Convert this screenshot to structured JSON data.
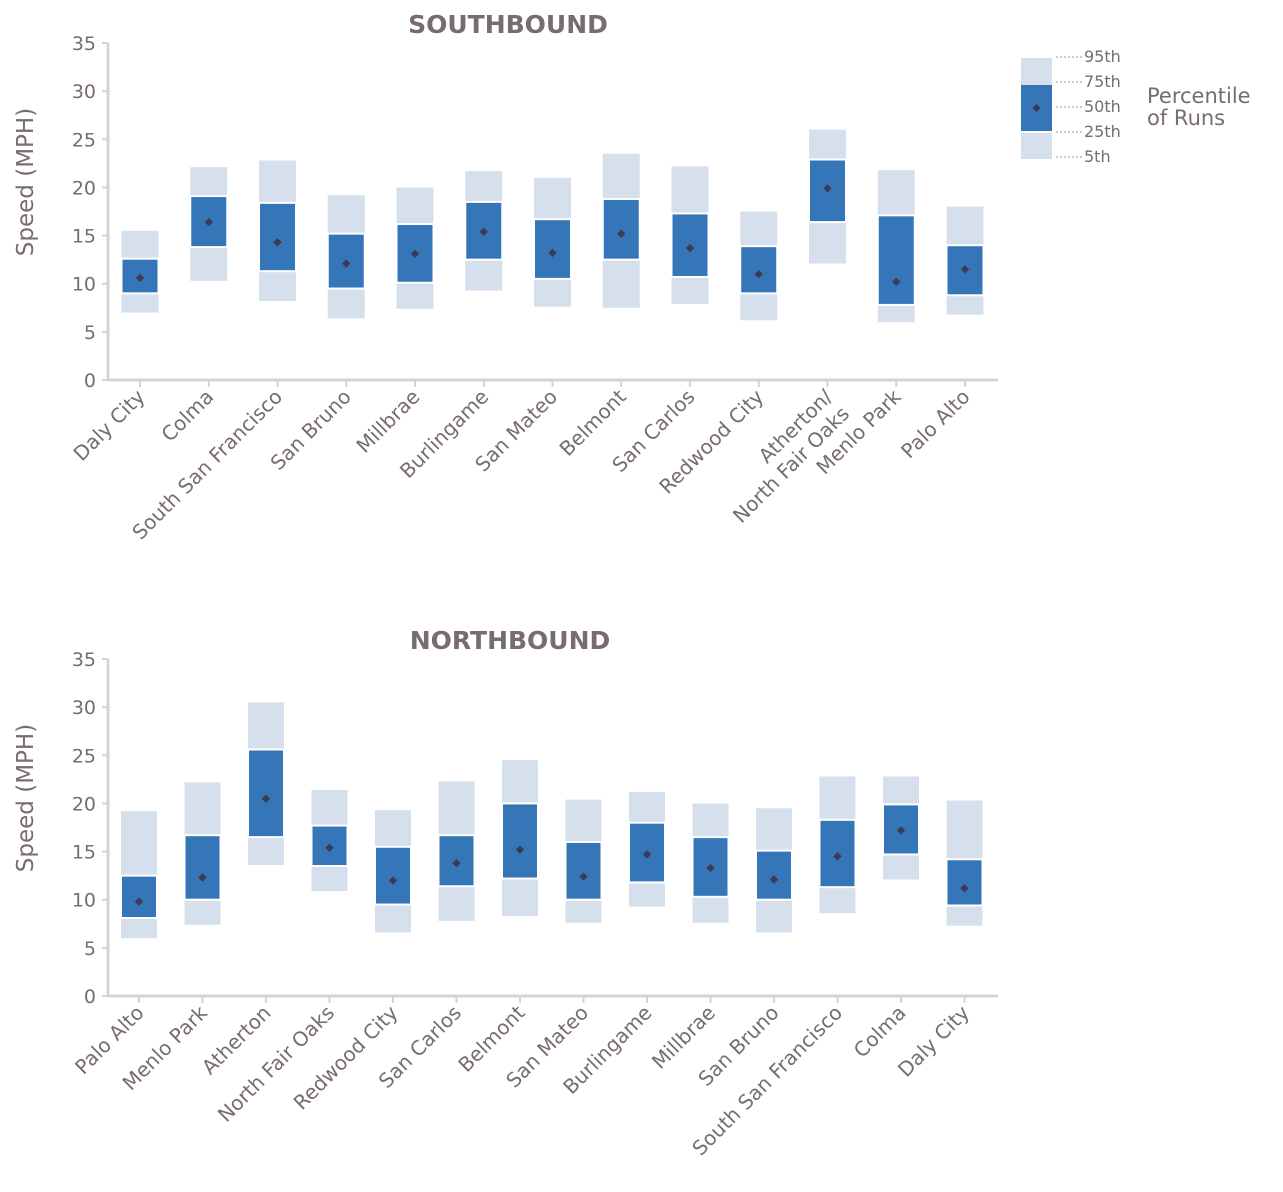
{
  "colors": {
    "outer_band": "#d6e0ec",
    "inner_band": "#3576b9",
    "median_marker": "#3c3a55",
    "text": "#776c6e",
    "axis": "#d4d4d6"
  },
  "legend": {
    "labels": [
      "95th",
      "75th",
      "50th",
      "25th",
      "5th"
    ],
    "title_lines": [
      "Percentile",
      "of Runs"
    ]
  },
  "chart_data": [
    {
      "type": "box",
      "title": "SOUTHBOUND",
      "ylabel": "Speed (MPH)",
      "xlabel": "",
      "ylim": [
        0,
        35
      ],
      "yticks": [
        0,
        5,
        10,
        15,
        20,
        25,
        30,
        35
      ],
      "grid": false,
      "legend_position": "right",
      "categories": [
        "Daly City",
        "Colma",
        "South San Francisco",
        "San Bruno",
        "Millbrae",
        "Burlingame",
        "San Mateo",
        "Belmont",
        "San Carlos",
        "Redwood City",
        [
          "Atherton/",
          "North Fair Oaks"
        ],
        "Menlo Park",
        "Palo Alto"
      ],
      "p5": [
        7.0,
        10.3,
        8.2,
        6.4,
        7.4,
        9.3,
        7.6,
        7.5,
        7.9,
        6.2,
        12.1,
        6.0,
        6.8
      ],
      "p25": [
        9.0,
        13.8,
        11.3,
        9.5,
        10.1,
        12.5,
        10.5,
        12.5,
        10.7,
        9.0,
        16.4,
        7.8,
        8.8
      ],
      "p50": [
        10.6,
        16.4,
        14.3,
        12.1,
        13.1,
        15.4,
        13.2,
        15.2,
        13.7,
        11.0,
        19.9,
        10.2,
        11.5
      ],
      "p75": [
        12.6,
        19.1,
        18.4,
        15.2,
        16.2,
        18.5,
        16.7,
        18.8,
        17.3,
        13.9,
        22.9,
        17.1,
        14.0
      ],
      "p95": [
        15.5,
        22.1,
        22.8,
        19.2,
        20.0,
        21.7,
        21.0,
        23.5,
        22.2,
        17.5,
        26.0,
        21.8,
        18.0
      ]
    },
    {
      "type": "box",
      "title": "NORTHBOUND",
      "ylabel": "Speed (MPH)",
      "xlabel": "",
      "ylim": [
        0,
        35
      ],
      "yticks": [
        0,
        5,
        10,
        15,
        20,
        25,
        30,
        35
      ],
      "grid": false,
      "categories": [
        "Palo Alto",
        "Menlo Park",
        "Atherton",
        "North Fair Oaks",
        "Redwood City",
        "San Carlos",
        "Belmont",
        "San Mateo",
        "Burlingame",
        "Millbrae",
        "San Bruno",
        "South San Francisco",
        "Colma",
        "Daly City"
      ],
      "p5": [
        6.0,
        7.4,
        13.6,
        10.9,
        6.6,
        7.8,
        8.3,
        7.6,
        9.3,
        7.6,
        6.6,
        8.6,
        12.1,
        7.3
      ],
      "p25": [
        8.1,
        10.0,
        16.5,
        13.5,
        9.5,
        11.4,
        12.2,
        10.0,
        11.8,
        10.3,
        10.0,
        11.3,
        14.7,
        9.4
      ],
      "p50": [
        9.8,
        12.3,
        20.5,
        15.4,
        12.0,
        13.8,
        15.2,
        12.4,
        14.7,
        13.3,
        12.1,
        14.5,
        17.2,
        11.2
      ],
      "p75": [
        12.5,
        16.7,
        25.6,
        17.7,
        15.5,
        16.7,
        20.0,
        16.0,
        18.0,
        16.5,
        15.1,
        18.3,
        19.9,
        14.2
      ],
      "p95": [
        19.2,
        22.2,
        30.5,
        21.4,
        19.3,
        22.3,
        24.5,
        20.4,
        21.2,
        20.0,
        19.5,
        22.8,
        22.8,
        20.3
      ]
    }
  ]
}
